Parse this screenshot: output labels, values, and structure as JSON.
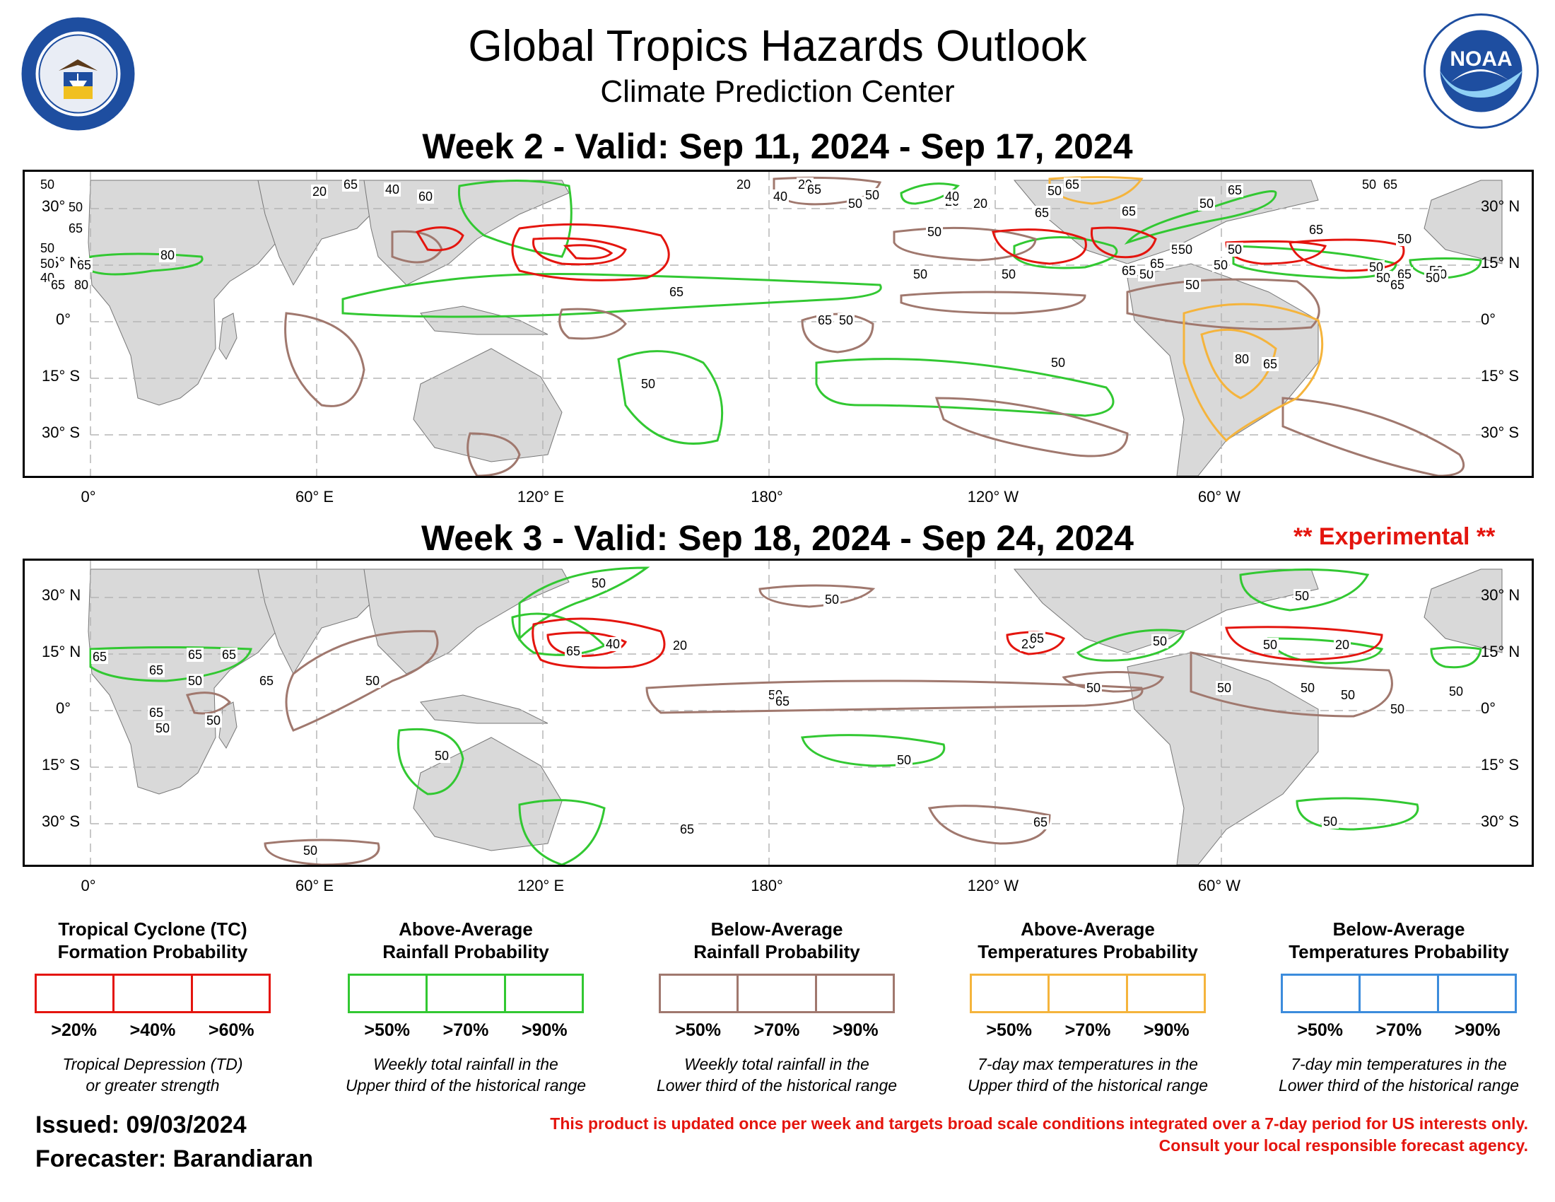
{
  "header": {
    "title": "Global Tropics Hazards Outlook",
    "subtitle": "Climate Prediction Center",
    "left_logo": "department-of-commerce-seal",
    "left_logo_text": "DEPARTMENT OF COMMERCE · UNITED STATES OF AMERICA",
    "right_logo": "noaa-logo",
    "right_logo_text": "NOAA"
  },
  "week2": {
    "title": "Week 2 - Valid: Sep 11, 2024 - Sep 17, 2024"
  },
  "week3": {
    "title": "Week 3 - Valid: Sep 18, 2024 - Sep 24, 2024",
    "experimental": "** Experimental **"
  },
  "axes": {
    "lon_labels": [
      "0°",
      "60° E",
      "120° E",
      "180°",
      "120° W",
      "60° W"
    ],
    "lat_labels_left": [
      "30° N",
      "15° N",
      "0°",
      "15° S",
      "30° S"
    ],
    "lat_labels_right": [
      "30° N",
      "15° N",
      "0°",
      "15° S",
      "30° S"
    ]
  },
  "colors": {
    "tc": "#e4150e",
    "above_rain": "#32c832",
    "below_rain": "#a0786e",
    "above_temp": "#f5b43c",
    "below_temp": "#3c8cdc",
    "land": "#d9d9d9"
  },
  "legend": [
    {
      "title1": "Tropical Cyclone (TC)",
      "title2": "Formation Probability",
      "color": "#e4150e",
      "thresholds": [
        ">20%",
        ">40%",
        ">60%"
      ],
      "desc1": "Tropical Depression (TD)",
      "desc2": "or greater strength"
    },
    {
      "title1": "Above-Average",
      "title2": "Rainfall Probability",
      "color": "#32c832",
      "thresholds": [
        ">50%",
        ">70%",
        ">90%"
      ],
      "desc1": "Weekly total rainfall in the",
      "desc2": "Upper third of the historical range"
    },
    {
      "title1": "Below-Average",
      "title2": "Rainfall Probability",
      "color": "#a0786e",
      "thresholds": [
        ">50%",
        ">70%",
        ">90%"
      ],
      "desc1": "Weekly total rainfall in the",
      "desc2": "Lower third of the historical range"
    },
    {
      "title1": "Above-Average",
      "title2": "Temperatures Probability",
      "color": "#f5b43c",
      "thresholds": [
        ">50%",
        ">70%",
        ">90%"
      ],
      "desc1": "7-day max temperatures in the",
      "desc2": "Upper third of the historical range"
    },
    {
      "title1": "Below-Average",
      "title2": "Temperatures Probability",
      "color": "#3c8cdc",
      "thresholds": [
        ">50%",
        ">70%",
        ">90%"
      ],
      "desc1": "7-day min temperatures in the",
      "desc2": "Lower third of the historical range"
    }
  ],
  "footer": {
    "issued": "Issued: 09/03/2024",
    "forecaster": "Forecaster: Barandiaran",
    "disclaimer1": "This product is updated once per week and targets broad scale conditions integrated over a 7-day period for US interests only.",
    "disclaimer2": "Consult your local responsible forecast agency."
  },
  "contour_labels": {
    "week2": {
      "tc": [
        "20",
        "40",
        "60",
        "20",
        "20",
        "40",
        "20",
        "40",
        "20"
      ],
      "above_rain": [
        "65",
        "50",
        "65",
        "50",
        "65",
        "80",
        "80",
        "65",
        "50",
        "50",
        "40",
        "50",
        "65",
        "65",
        "50",
        "65",
        "50",
        "50",
        "65"
      ],
      "below_rain": [
        "65",
        "50",
        "50",
        "50",
        "50",
        "50",
        "50",
        "65",
        "50",
        "50",
        "50",
        "65",
        "50",
        "65",
        "50",
        "50",
        "50",
        "50",
        "50",
        "65",
        "65",
        "50",
        "65",
        "50",
        "65",
        "50"
      ],
      "above_temp": [
        "65",
        "50",
        "80",
        "65",
        "50",
        "65"
      ]
    },
    "week3": {
      "tc": [
        "20",
        "40",
        "20",
        "20",
        "65"
      ],
      "above_rain": [
        "50",
        "65",
        "65",
        "65",
        "65",
        "50",
        "65",
        "50",
        "50",
        "50",
        "50",
        "50",
        "50",
        "65",
        "50"
      ],
      "below_rain": [
        "50",
        "50",
        "50",
        "65",
        "50",
        "65",
        "50",
        "50",
        "50",
        "65",
        "50",
        "50",
        "65",
        "50",
        "50"
      ]
    }
  }
}
